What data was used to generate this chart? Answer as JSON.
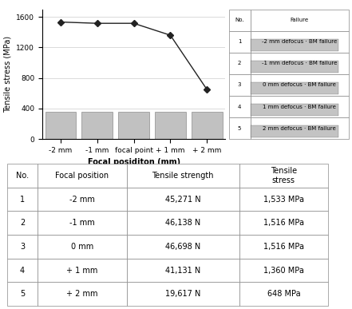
{
  "x_labels": [
    "-2 mm",
    "-1 mm",
    "focal point",
    "+ 1 mm",
    "+ 2 mm"
  ],
  "x_values": [
    0,
    1,
    2,
    3,
    4
  ],
  "y_values": [
    1533,
    1516,
    1516,
    1360,
    648
  ],
  "ylabel": "Tensile stress (MPa)",
  "xlabel": "Focal posiditon (mm)",
  "ylim": [
    0,
    1700
  ],
  "yticks": [
    0,
    400,
    800,
    1200,
    1600
  ],
  "line_color": "#222222",
  "marker": "D",
  "marker_size": 4,
  "bg_color": "#ffffff",
  "grid_color": "#cccccc",
  "table_headers": [
    "No.",
    "Focal position",
    "Tensile strength",
    "Tensile\nstress"
  ],
  "table_rows": [
    [
      "1",
      "-2 mm",
      "45,271 N",
      "1,533 MPa"
    ],
    [
      "2",
      "-1 mm",
      "46,138 N",
      "1,516 MPa"
    ],
    [
      "3",
      "0 mm",
      "46,698 N",
      "1,516 MPa"
    ],
    [
      "4",
      "+ 1 mm",
      "41,131 N",
      "1,360 MPa"
    ],
    [
      "5",
      "+ 2 mm",
      "19,617 N",
      "648 MPa"
    ]
  ],
  "right_table_headers": [
    "No.",
    "Failure"
  ],
  "right_table_rows": [
    [
      "1",
      "-2 mm defocus · BM failure"
    ],
    [
      "2",
      "-1 mm defocus · BM failure"
    ],
    [
      "3",
      "0 mm defocus · BM failure"
    ],
    [
      "4",
      "1 mm defocus · BM failure"
    ],
    [
      "5",
      "2 mm defocus · BM failure"
    ]
  ],
  "font_size_axis_label": 7,
  "font_size_tick": 6.5,
  "font_size_table": 7,
  "font_size_right_table": 5
}
